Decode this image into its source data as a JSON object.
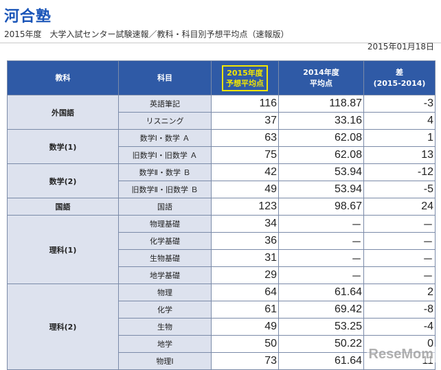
{
  "header": {
    "logo": "河合塾",
    "subtitle": "2015年度　大学入試センター試験速報／教科・科目別予想平均点（速報版）",
    "date": "2015年01月18日"
  },
  "table": {
    "columns": {
      "col1": "教科",
      "col2": "科目",
      "col3_line1": "2015年度",
      "col3_line2": "予想平均点",
      "col4_line1": "2014年度",
      "col4_line2": "平均点",
      "col5_line1": "差",
      "col5_line2": "(2015-2014)"
    },
    "groups": [
      {
        "name": "外国語",
        "rows": [
          {
            "subject": "英語筆記",
            "avg2015": "116",
            "avg2014": "118.87",
            "diff": "-3"
          },
          {
            "subject": "リスニング",
            "avg2015": "37",
            "avg2014": "33.16",
            "diff": "4"
          }
        ]
      },
      {
        "name": "数学(1)",
        "rows": [
          {
            "subject": "数学Ⅰ・数学 Ａ",
            "avg2015": "63",
            "avg2014": "62.08",
            "diff": "1"
          },
          {
            "subject": "旧数学Ⅰ・旧数学 Ａ",
            "avg2015": "75",
            "avg2014": "62.08",
            "diff": "13"
          }
        ]
      },
      {
        "name": "数学(2)",
        "rows": [
          {
            "subject": "数学Ⅱ・数学 Ｂ",
            "avg2015": "42",
            "avg2014": "53.94",
            "diff": "-12"
          },
          {
            "subject": "旧数学Ⅱ・旧数学 Ｂ",
            "avg2015": "49",
            "avg2014": "53.94",
            "diff": "-5"
          }
        ]
      },
      {
        "name": "国語",
        "rows": [
          {
            "subject": "国語",
            "avg2015": "123",
            "avg2014": "98.67",
            "diff": "24"
          }
        ]
      },
      {
        "name": "理科(1)",
        "rows": [
          {
            "subject": "物理基礎",
            "avg2015": "34",
            "avg2014": "－",
            "diff": "－"
          },
          {
            "subject": "化学基礎",
            "avg2015": "36",
            "avg2014": "－",
            "diff": "－"
          },
          {
            "subject": "生物基礎",
            "avg2015": "31",
            "avg2014": "－",
            "diff": "－"
          },
          {
            "subject": "地学基礎",
            "avg2015": "29",
            "avg2014": "－",
            "diff": "－"
          }
        ]
      },
      {
        "name": "理科(2)",
        "rows": [
          {
            "subject": "物理",
            "avg2015": "64",
            "avg2014": "61.64",
            "diff": "2"
          },
          {
            "subject": "化学",
            "avg2015": "61",
            "avg2014": "69.42",
            "diff": "-8"
          },
          {
            "subject": "生物",
            "avg2015": "49",
            "avg2014": "53.25",
            "diff": "-4"
          },
          {
            "subject": "地学",
            "avg2015": "50",
            "avg2014": "50.22",
            "diff": "0"
          },
          {
            "subject": "物理Ⅰ",
            "avg2015": "73",
            "avg2014": "61.64",
            "diff": "11"
          }
        ]
      }
    ]
  },
  "watermark": "ReseMom"
}
